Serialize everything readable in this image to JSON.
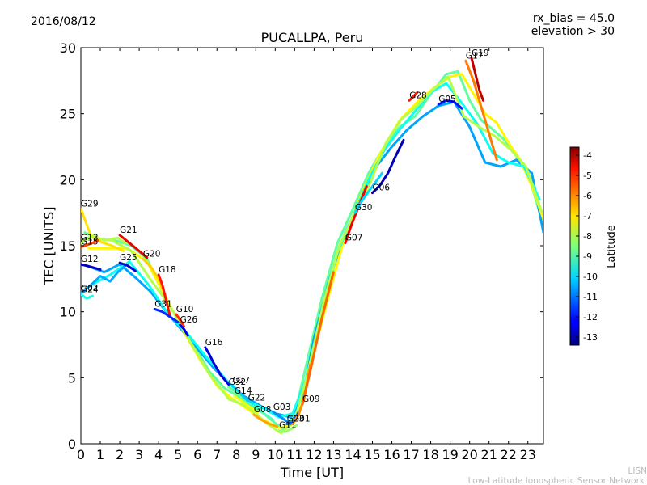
{
  "header": {
    "date": "2016/08/12",
    "rx_bias": "rx_bias = 45.0",
    "elevation": "elevation > 30"
  },
  "footer": {
    "line1": "LISN",
    "line2": "Low-Latitude Ionospheric Sensor Network"
  },
  "chart_data": {
    "type": "line",
    "title": "PUCALLPA, Peru",
    "xlabel": "Time [UT]",
    "ylabel": "TEC [UNITS]",
    "xlim": [
      0,
      23.8
    ],
    "ylim": [
      0,
      30
    ],
    "xticks": [
      0,
      1,
      2,
      3,
      4,
      5,
      6,
      7,
      8,
      9,
      10,
      11,
      12,
      13,
      14,
      15,
      16,
      17,
      18,
      19,
      20,
      21,
      22,
      23
    ],
    "yticks": [
      0,
      5,
      10,
      15,
      20,
      25,
      30
    ],
    "colorbar": {
      "label": "Latitude",
      "min": -13.4,
      "max": -3.6,
      "ticks": [
        -4,
        -5,
        -6,
        -7,
        -8,
        -9,
        -10,
        -11,
        -12,
        -13
      ]
    },
    "series": [
      {
        "name": "G29",
        "lat": -7.0,
        "x": [
          0,
          0.5,
          1,
          1.6,
          2.2
        ],
        "y": [
          17.8,
          15.8,
          15.3,
          15.0,
          14.6
        ]
      },
      {
        "name": "G13",
        "lat": -8.0,
        "x": [
          0,
          0.6,
          1.2,
          1.9,
          2.3
        ],
        "y": [
          15.2,
          15.8,
          15.4,
          15.6,
          15.2
        ]
      },
      {
        "name": "G15",
        "lat": -5.5,
        "x": [
          0,
          0.4,
          0.9
        ],
        "y": [
          14.9,
          15.1,
          15.4
        ]
      },
      {
        "name": "G12",
        "lat": -12.8,
        "x": [
          0,
          0.5,
          1.0
        ],
        "y": [
          13.6,
          13.4,
          13.2
        ]
      },
      {
        "name": "G02",
        "lat": -10.5,
        "x": [
          0,
          0.5,
          1,
          1.5,
          1.9,
          2.3
        ],
        "y": [
          11.4,
          12.0,
          12.7,
          12.3,
          13.0,
          13.5
        ]
      },
      {
        "name": "G24",
        "lat": -9.5,
        "x": [
          0,
          0.3,
          0.6
        ],
        "y": [
          11.3,
          11.0,
          11.2
        ]
      },
      {
        "name": "G21",
        "lat": -4.6,
        "x": [
          2.0,
          2.5,
          3.0,
          3.4
        ],
        "y": [
          15.8,
          15.2,
          14.6,
          14.1
        ]
      },
      {
        "name": "G25",
        "lat": -12.6,
        "x": [
          2.0,
          2.4,
          2.8
        ],
        "y": [
          13.7,
          13.5,
          13.1
        ]
      },
      {
        "name": "G20",
        "lat": -6.8,
        "x": [
          3.2,
          3.6,
          4.0,
          4.4
        ],
        "y": [
          14.0,
          13.4,
          12.5,
          11.0
        ]
      },
      {
        "name": "G18",
        "lat": -5.0,
        "x": [
          4.0,
          4.2,
          4.4,
          4.6
        ],
        "y": [
          12.8,
          12.0,
          10.8,
          9.6
        ]
      },
      {
        "name": "G31",
        "lat": -11.8,
        "x": [
          3.8,
          4.2,
          4.6,
          5.0
        ],
        "y": [
          10.2,
          10.0,
          9.6,
          9.2
        ]
      },
      {
        "name": "G10",
        "lat": -5.3,
        "x": [
          4.9,
          5.1,
          5.3
        ],
        "y": [
          9.8,
          9.4,
          8.9
        ]
      },
      {
        "name": "G26",
        "lat": -12.2,
        "x": [
          5.1,
          5.3,
          5.5
        ],
        "y": [
          9.0,
          8.7,
          8.2
        ]
      },
      {
        "name": "G16",
        "lat": -12.5,
        "x": [
          6.4,
          6.6,
          6.8,
          7.2,
          7.6
        ],
        "y": [
          7.3,
          6.8,
          6.2,
          5.2,
          4.5
        ]
      },
      {
        "name": "G32",
        "lat": -8.7,
        "x": [
          7.6,
          7.9,
          8.2,
          8.5
        ],
        "y": [
          4.3,
          4.0,
          3.6,
          3.1
        ]
      },
      {
        "name": "G27",
        "lat": -10.2,
        "x": [
          7.8,
          8.1,
          8.4,
          8.8
        ],
        "y": [
          4.4,
          4.0,
          3.5,
          3.0
        ]
      },
      {
        "name": "G14",
        "lat": -7.4,
        "x": [
          7.9,
          8.3,
          8.7,
          9.1
        ],
        "y": [
          3.6,
          3.2,
          2.8,
          2.4
        ]
      },
      {
        "name": "G22",
        "lat": -9.0,
        "x": [
          8.6,
          9.0,
          9.4,
          9.9
        ],
        "y": [
          3.1,
          2.7,
          2.3,
          1.8
        ]
      },
      {
        "name": "G08",
        "lat": -6.4,
        "x": [
          8.9,
          9.3,
          9.7,
          10.1
        ],
        "y": [
          2.2,
          1.8,
          1.5,
          1.3
        ]
      },
      {
        "name": "G03",
        "lat": -10.8,
        "x": [
          9.9,
          10.2,
          10.5,
          10.8
        ],
        "y": [
          2.4,
          2.1,
          1.8,
          1.5
        ]
      },
      {
        "name": "G11",
        "lat": -8.3,
        "x": [
          10.2,
          10.5,
          10.8,
          11.1
        ],
        "y": [
          1.0,
          0.9,
          1.1,
          1.4
        ]
      },
      {
        "name": "G23",
        "lat": -11.3,
        "x": [
          10.6,
          10.9,
          11.2
        ],
        "y": [
          1.5,
          1.6,
          2.4
        ]
      },
      {
        "name": "G01",
        "lat": -6.2,
        "x": [
          10.9,
          11.2,
          11.5,
          11.8
        ],
        "y": [
          1.5,
          2.2,
          3.5,
          6.0
        ]
      },
      {
        "name": "G09",
        "lat": -5.8,
        "x": [
          11.4,
          11.8,
          12.4,
          13.0
        ],
        "y": [
          3.0,
          5.5,
          9.5,
          13.0
        ]
      },
      {
        "name": "G07",
        "lat": -4.7,
        "x": [
          13.6,
          13.9,
          14.3,
          14.7
        ],
        "y": [
          15.2,
          16.5,
          18.0,
          19.5
        ]
      },
      {
        "name": "G30",
        "lat": -10.1,
        "x": [
          14.1,
          14.5,
          15.0,
          15.5
        ],
        "y": [
          17.5,
          18.5,
          19.5,
          20.5
        ]
      },
      {
        "name": "G06",
        "lat": -12.9,
        "x": [
          15.0,
          15.4,
          15.8,
          16.2,
          16.6
        ],
        "y": [
          19.0,
          19.6,
          20.5,
          21.8,
          23.0
        ]
      },
      {
        "name": "G28",
        "lat": -5.1,
        "x": [
          16.9,
          17.1,
          17.3
        ],
        "y": [
          26.0,
          26.3,
          26.6
        ]
      },
      {
        "name": "G05",
        "lat": -12.0,
        "x": [
          18.4,
          18.8,
          19.2,
          19.6
        ],
        "y": [
          25.7,
          26.0,
          25.9,
          25.4
        ]
      },
      {
        "name": "G17",
        "lat": -6.0,
        "x": [
          19.8,
          20.2,
          20.6,
          21.0,
          21.4
        ],
        "y": [
          29.0,
          27.5,
          25.5,
          23.5,
          21.5
        ]
      },
      {
        "name": "G19",
        "lat": -4.2,
        "x": [
          20.1,
          20.3,
          20.5,
          20.7
        ],
        "y": [
          29.2,
          28.0,
          26.8,
          26.0
        ]
      }
    ],
    "bands": [
      {
        "lat": -8.8,
        "x": [
          0.2,
          1.0,
          1.8,
          2.6,
          3.4,
          4.2,
          5.0,
          5.8,
          6.6,
          7.4,
          8.2,
          9.0,
          9.8,
          10.4,
          11.0,
          11.6,
          12.4,
          13.2,
          14.0,
          14.8,
          15.6,
          16.4,
          17.2,
          18.0,
          18.8,
          19.4,
          20.0,
          20.6,
          21.2,
          21.8,
          22.4,
          23.0,
          23.7
        ],
        "y": [
          16.0,
          15.5,
          15.4,
          15.0,
          14.0,
          11.5,
          9.3,
          7.5,
          5.5,
          4.2,
          3.5,
          2.8,
          1.8,
          1.1,
          2.2,
          6.0,
          11.0,
          15.2,
          17.8,
          20.5,
          22.5,
          24.0,
          24.8,
          26.5,
          28.0,
          28.2,
          26.0,
          24.5,
          23.8,
          23.0,
          21.8,
          20.5,
          17.0
        ]
      },
      {
        "lat": -10.6,
        "x": [
          0.3,
          1.2,
          2.0,
          2.8,
          3.6,
          4.4,
          5.2,
          6.0,
          6.8,
          7.6,
          8.4,
          9.2,
          10.0,
          10.8,
          11.4,
          12.0,
          12.8,
          13.6,
          14.4,
          15.2,
          16.0,
          16.8,
          17.6,
          18.4,
          19.2,
          20.0,
          20.8,
          21.6,
          22.4,
          23.2,
          23.8
        ],
        "y": [
          13.5,
          13.0,
          13.6,
          12.6,
          11.5,
          10.0,
          8.6,
          7.2,
          5.8,
          4.6,
          3.6,
          2.9,
          2.3,
          2.0,
          3.5,
          8.0,
          12.5,
          16.0,
          18.5,
          21.0,
          22.5,
          23.8,
          24.8,
          25.6,
          25.9,
          24.0,
          21.3,
          21.0,
          21.5,
          20.5,
          16.0
        ]
      },
      {
        "lat": -7.2,
        "x": [
          0.4,
          1.4,
          2.4,
          3.4,
          4.4,
          5.4,
          6.2,
          7.0,
          7.8,
          8.6,
          9.4,
          10.2,
          10.8,
          11.4,
          12.0,
          12.8,
          13.6,
          14.6,
          15.4,
          16.4,
          17.4,
          18.2,
          19.0,
          19.6,
          20.2,
          20.8,
          21.4,
          22.0,
          22.6,
          23.2,
          23.8
        ],
        "y": [
          14.8,
          14.8,
          14.8,
          13.8,
          11.0,
          8.2,
          6.2,
          4.4,
          3.4,
          2.6,
          1.8,
          1.2,
          1.4,
          3.0,
          7.0,
          11.5,
          15.8,
          19.5,
          22.0,
          24.5,
          26.0,
          27.0,
          27.8,
          28.0,
          26.5,
          25.0,
          24.3,
          22.8,
          21.5,
          19.5,
          17.0
        ]
      },
      {
        "lat": -9.6,
        "x": [
          0.5,
          1.5,
          2.5,
          3.5,
          4.5,
          5.5,
          6.5,
          7.5,
          8.5,
          9.5,
          10.2,
          10.9,
          11.6,
          12.4,
          13.2,
          14.0,
          14.8,
          15.6,
          16.4,
          17.2,
          18.0,
          18.8,
          19.6,
          20.4,
          21.2,
          22.0,
          22.8,
          23.6
        ],
        "y": [
          12.0,
          12.8,
          13.8,
          12.0,
          9.8,
          8.3,
          6.5,
          4.8,
          3.3,
          2.6,
          2.0,
          2.3,
          5.0,
          10.0,
          14.5,
          17.2,
          20.0,
          22.2,
          23.8,
          25.2,
          26.6,
          27.3,
          25.8,
          24.2,
          22.0,
          21.3,
          21.0,
          18.5
        ]
      },
      {
        "lat": -8.0,
        "x": [
          0.6,
          1.6,
          2.6,
          3.6,
          4.6,
          5.6,
          6.6,
          7.6,
          8.6,
          9.6,
          10.3,
          11.0,
          11.7,
          12.5,
          13.3,
          14.1,
          14.9,
          15.7,
          16.5,
          17.3,
          18.1,
          18.9,
          19.7,
          20.5,
          21.3,
          22.1,
          22.9,
          23.7
        ],
        "y": [
          15.6,
          15.4,
          14.6,
          12.4,
          10.4,
          7.8,
          5.3,
          3.4,
          2.8,
          1.5,
          0.8,
          1.8,
          5.5,
          10.8,
          15.0,
          17.5,
          19.8,
          22.8,
          24.6,
          25.6,
          26.8,
          27.8,
          24.8,
          24.0,
          23.3,
          22.3,
          21.0,
          17.6
        ]
      }
    ]
  }
}
